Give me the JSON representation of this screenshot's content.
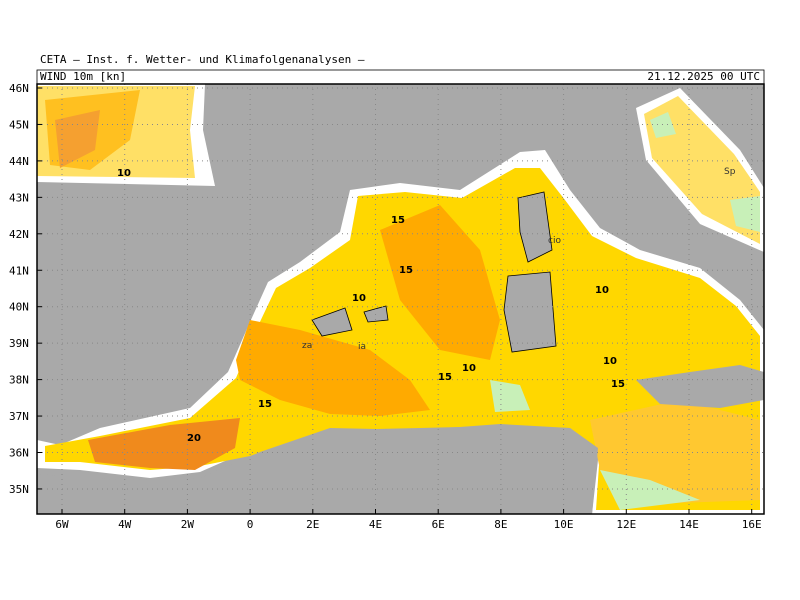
{
  "header": {
    "title": "CETA — Inst. f. Wetter- und Klimafolgenanalysen —",
    "field": "WIND 10m [kn]",
    "time": "21.12.2025 00 UTC"
  },
  "map": {
    "lat_labels": [
      "46N",
      "45N",
      "44N",
      "43N",
      "42N",
      "41N",
      "40N",
      "39N",
      "38N",
      "37N",
      "36N",
      "35N"
    ],
    "lon_labels": [
      "6W",
      "4W",
      "2W",
      "0",
      "2E",
      "4E",
      "6E",
      "8E",
      "10E",
      "12E",
      "14E",
      "16E"
    ],
    "contour_labels": [
      "10",
      "15",
      "15",
      "10",
      "10",
      "10",
      "15",
      "15",
      "10",
      "15",
      "20"
    ],
    "place_labels": [
      "Sp",
      "cio",
      "za",
      "ia"
    ]
  }
}
